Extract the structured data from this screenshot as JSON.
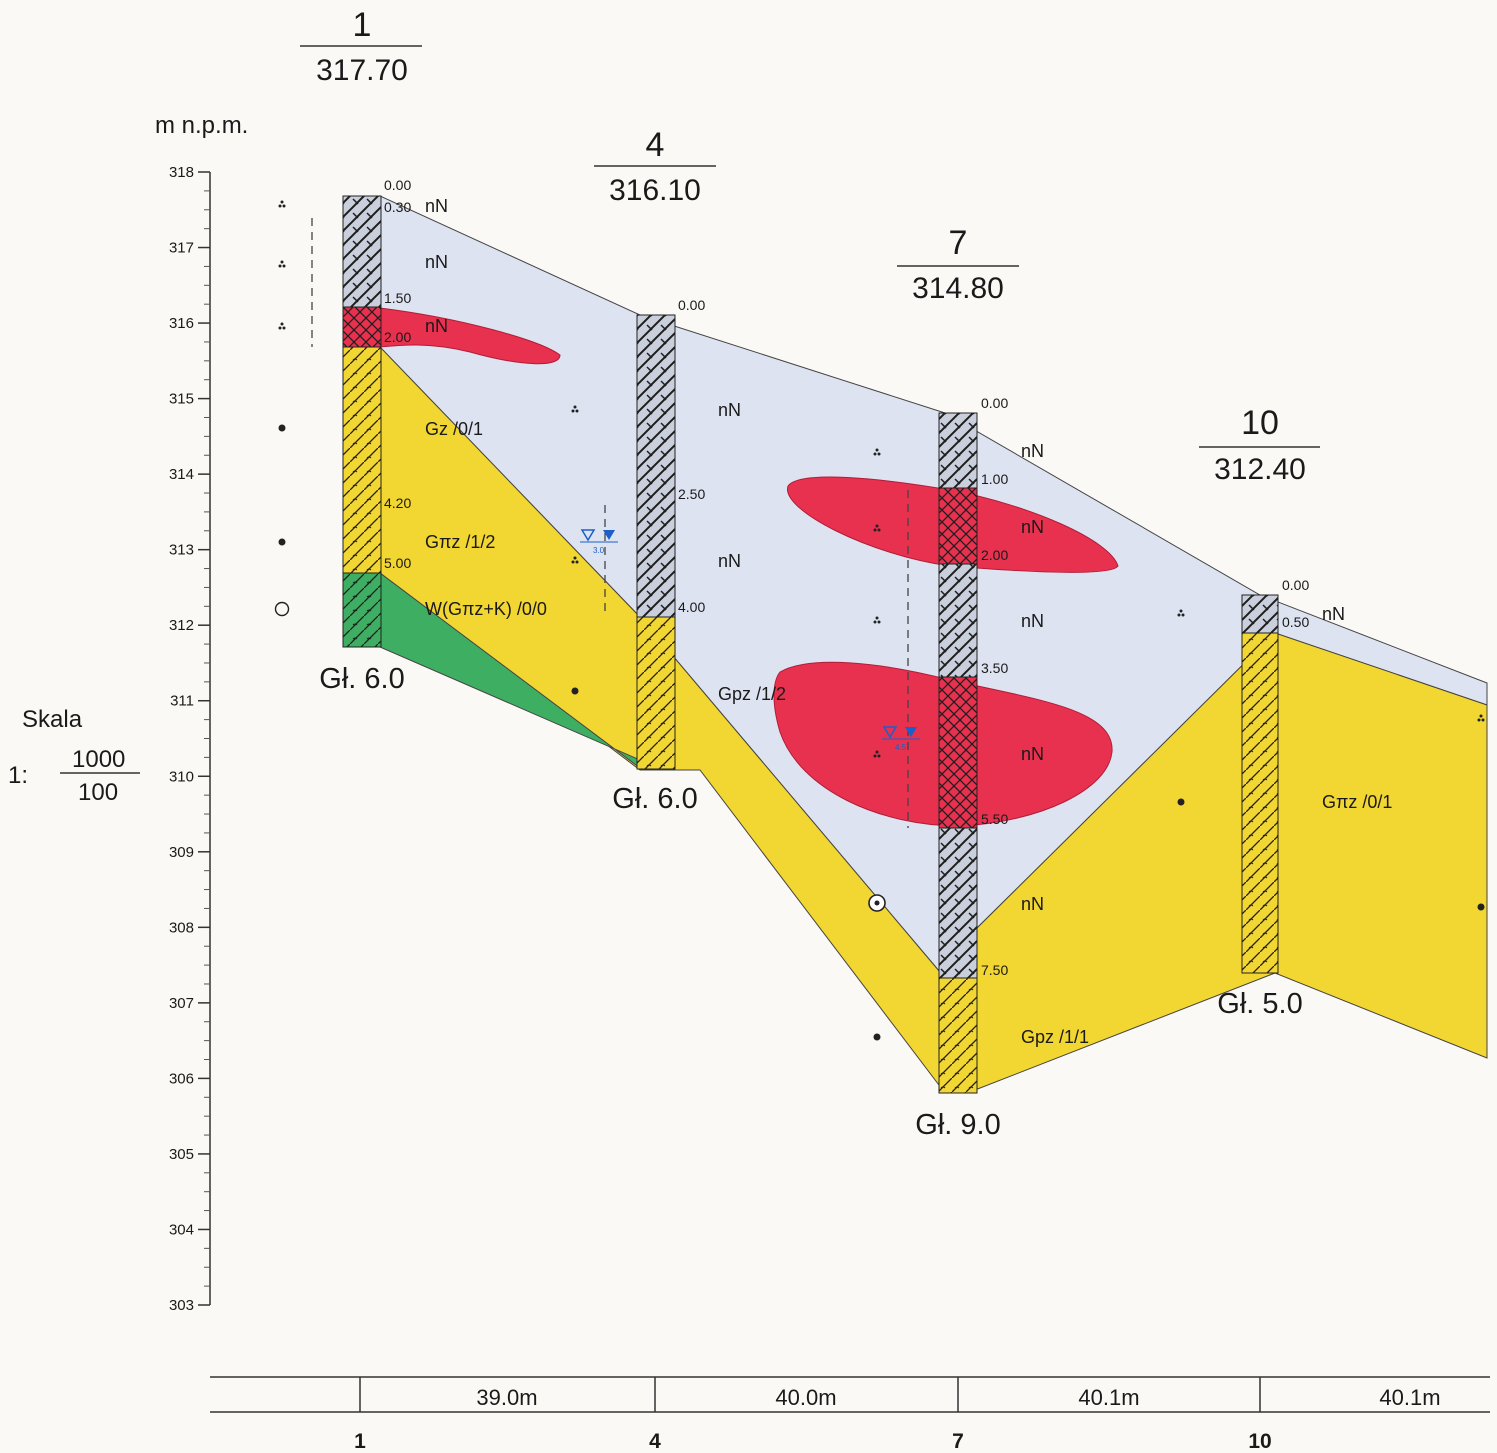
{
  "axis": {
    "unit_label": "m n.p.m.",
    "min": 303,
    "max": 318,
    "ticks": [
      "318",
      "317",
      "316",
      "315",
      "314",
      "313",
      "312",
      "311",
      "310",
      "309",
      "308",
      "307",
      "306",
      "305",
      "304",
      "303"
    ]
  },
  "scale": {
    "label": "Skala",
    "prefix": "1:",
    "numerator": "1000",
    "denominator": "100"
  },
  "boreholes": [
    {
      "id": "1",
      "elevation": "317.70",
      "depth_label": "Gł. 6.0",
      "depths": [
        "0.00",
        "0.30",
        "1.50",
        "2.00",
        "4.20",
        "5.00"
      ]
    },
    {
      "id": "4",
      "elevation": "316.10",
      "depth_label": "Gł. 6.0",
      "depths": [
        "0.00",
        "2.50",
        "4.00"
      ]
    },
    {
      "id": "7",
      "elevation": "314.80",
      "depth_label": "Gł. 9.0",
      "depths": [
        "0.00",
        "1.00",
        "2.00",
        "3.50",
        "5.50",
        "7.50"
      ]
    },
    {
      "id": "10",
      "elevation": "312.40",
      "depth_label": "Gł. 5.0",
      "depths": [
        "0.00",
        "0.50"
      ]
    }
  ],
  "soil_labels": [
    "nN",
    "nN",
    "nN",
    "Gz /0/1",
    "Gπz /1/2",
    "W(Gπz+K) /0/0",
    "nN",
    "nN",
    "Gpz /1/2",
    "nN",
    "nN",
    "nN",
    "nN",
    "nN",
    "Gpz /1/1",
    "nN",
    "Gπz /0/1"
  ],
  "water_levels": [
    "3.0",
    "4.5"
  ],
  "distances": {
    "segments": [
      "39.0m",
      "40.0m",
      "40.1m",
      "40.1m"
    ],
    "labels": [
      "1",
      "4",
      "7",
      "10"
    ]
  },
  "colors": {
    "fill_layer": "#dde3f0",
    "sand_layer": "#f2d632",
    "gravel_layer": "#3eae63",
    "contamination": "#e8304f",
    "column_hatch": "#2a2a2a",
    "water_marker": "#1c5fc8"
  }
}
